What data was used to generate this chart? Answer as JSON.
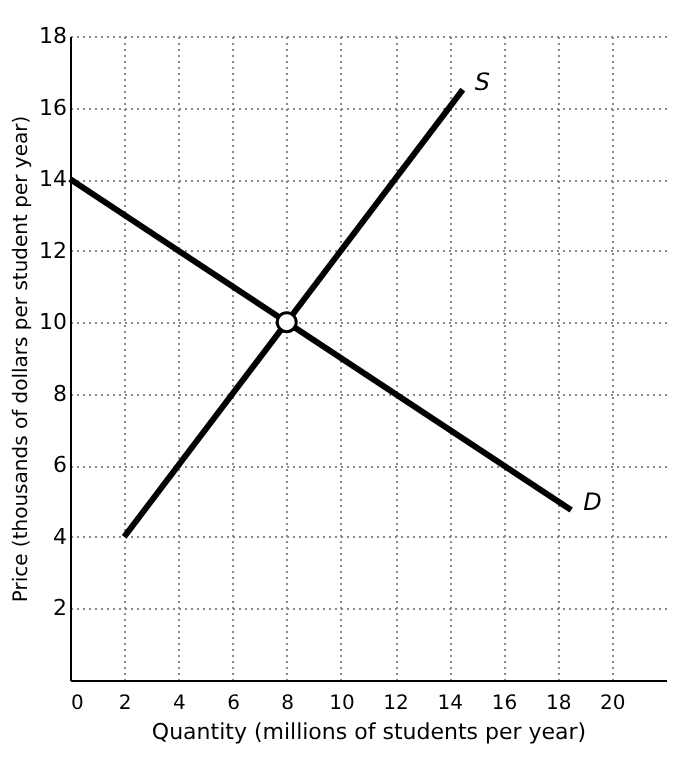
{
  "chart_data": {
    "type": "line",
    "xlabel": "Quantity (millions of students per year)",
    "ylabel": "Price (thousands of dollars per student per year)",
    "series": [
      {
        "name": "S",
        "color": "#000000",
        "x": [
          2,
          14.5
        ],
        "values": [
          4,
          16.5
        ]
      },
      {
        "name": "D",
        "color": "#000000",
        "x": [
          0,
          18.5
        ],
        "values": [
          14,
          4.75
        ]
      },
      {
        "type": "scatter",
        "color": "#000000",
        "x": [
          8
        ],
        "values": [
          10
        ],
        "marker": "circle"
      }
    ],
    "xlim": [
      0,
      22
    ],
    "xticks": [
      0,
      2,
      4,
      6,
      8,
      10,
      12,
      14,
      16,
      18,
      20
    ],
    "ylim": [
      0,
      18
    ],
    "yticks": [
      2,
      4,
      6,
      8,
      10,
      12,
      14,
      16,
      18
    ],
    "grid": true,
    "line_style": "solid"
  }
}
